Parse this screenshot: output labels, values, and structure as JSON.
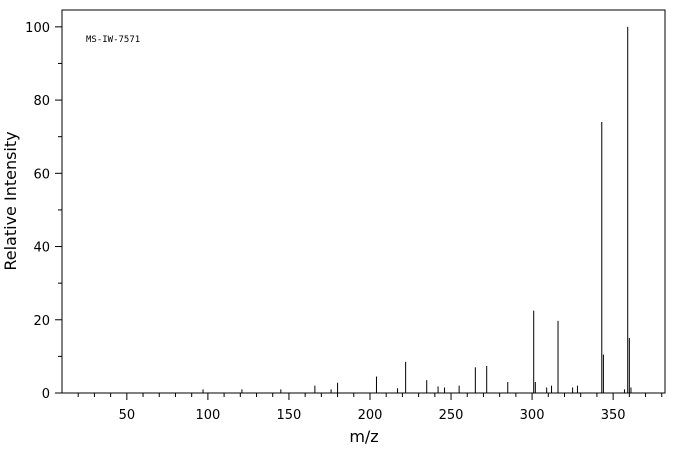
{
  "chart_data": {
    "type": "stick",
    "annotation": "MS-IW-7571",
    "x_label": "m/z",
    "y_label": "Relative Intensity",
    "xlim": [
      10,
      382
    ],
    "ylim": [
      0,
      104.6
    ],
    "xticks": [
      50,
      100,
      150,
      200,
      250,
      300,
      350
    ],
    "yticks": [
      0,
      20,
      40,
      60,
      80,
      100
    ],
    "xminorticks": [
      20,
      30,
      40,
      60,
      70,
      80,
      90,
      110,
      120,
      130,
      140,
      160,
      170,
      180,
      190,
      210,
      220,
      230,
      240,
      260,
      270,
      280,
      290,
      310,
      320,
      330,
      340,
      360,
      370,
      380
    ],
    "yminorticks": [
      10,
      30,
      50,
      70,
      90
    ],
    "color": "#000000",
    "x": [
      97,
      121,
      145,
      166,
      176,
      180,
      204,
      217,
      222,
      235,
      242,
      246,
      255,
      265,
      272,
      285,
      301,
      302,
      309,
      312,
      316,
      325,
      328,
      343,
      344,
      357,
      359,
      360,
      361
    ],
    "values": [
      1,
      1,
      1,
      2,
      1,
      2.8,
      4.5,
      1.3,
      8.5,
      3.5,
      1.8,
      1.5,
      2,
      7,
      7.4,
      3,
      22.5,
      3,
      1.5,
      2,
      19.7,
      1.5,
      2,
      74,
      10.5,
      1,
      100,
      15,
      1.5
    ]
  }
}
